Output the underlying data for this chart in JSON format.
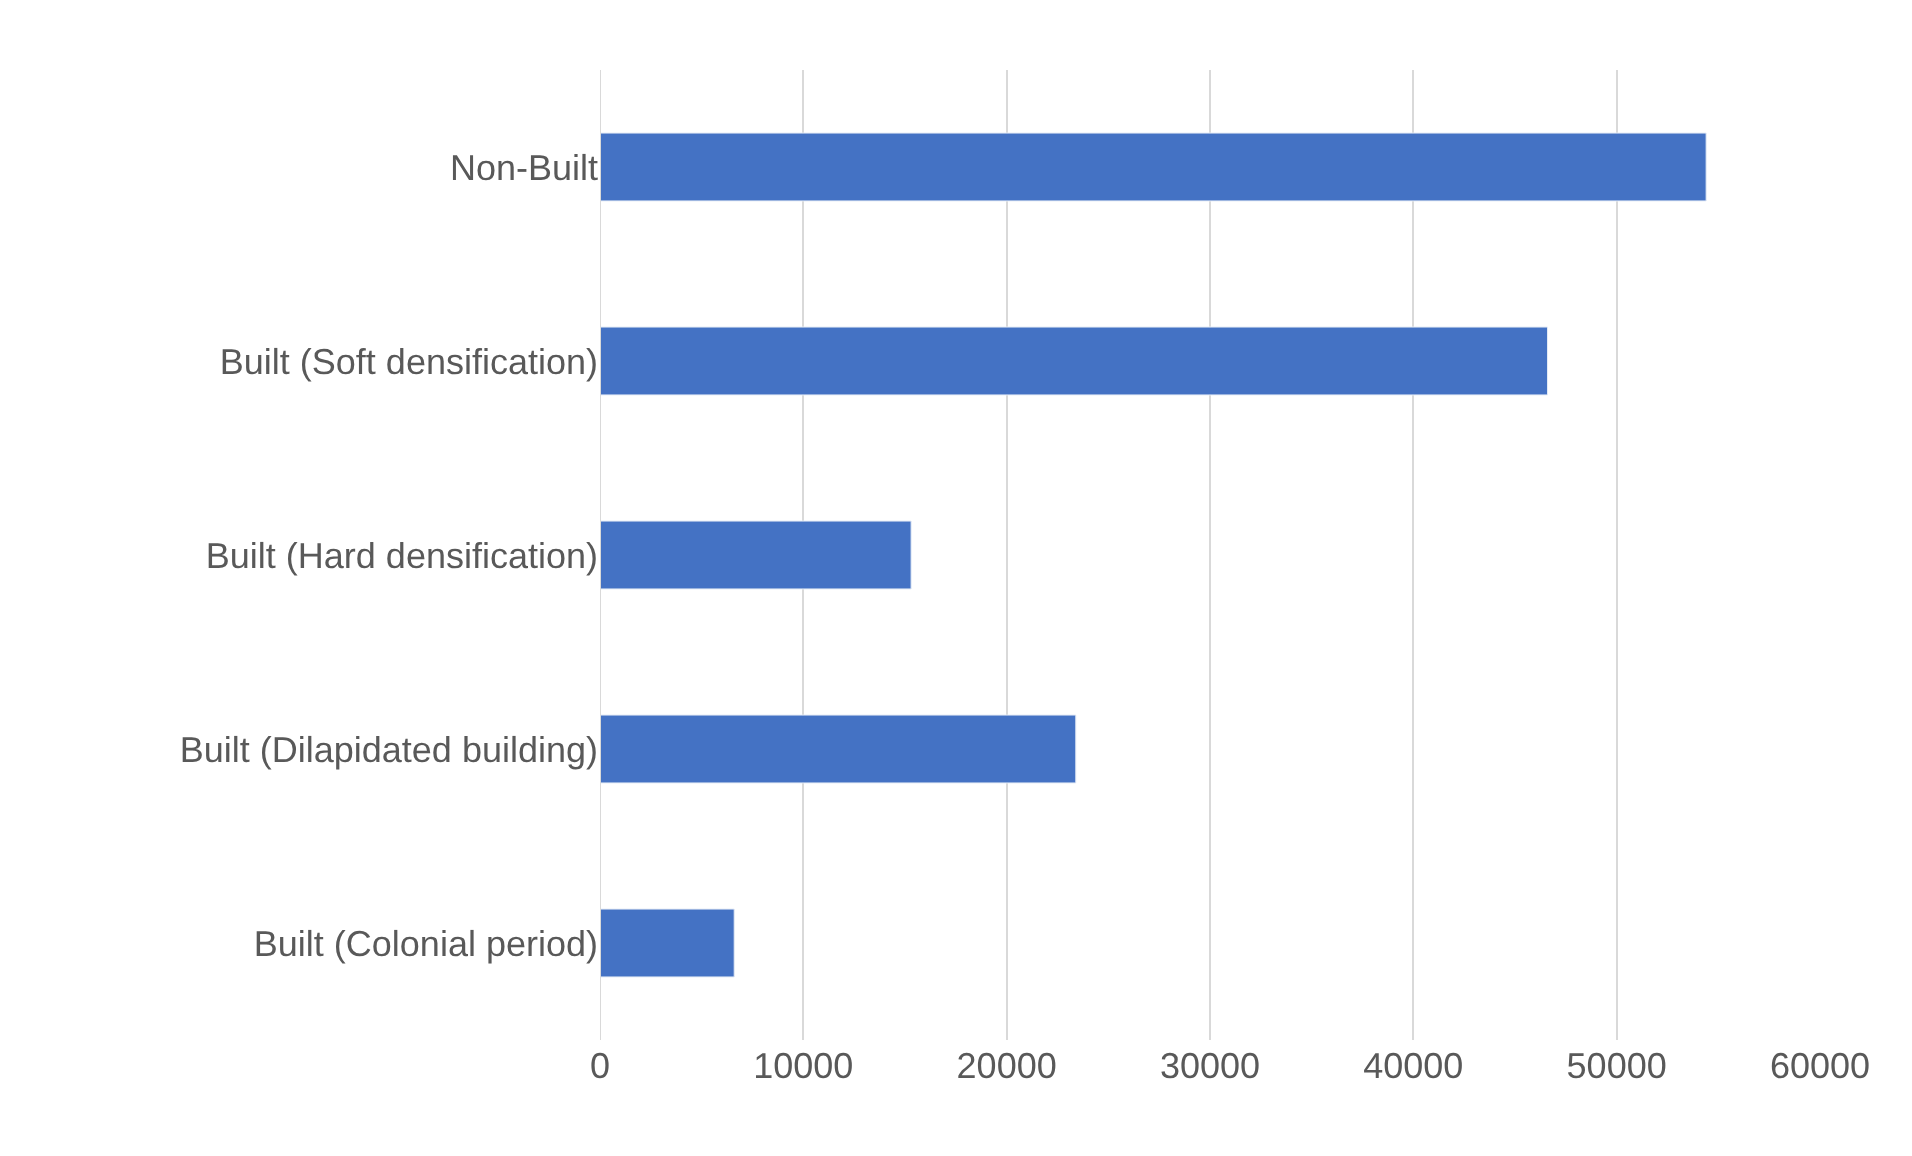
{
  "chart_data": {
    "type": "bar",
    "orientation": "horizontal",
    "categories": [
      "Non-Built",
      "Built (Soft densification)",
      "Built (Hard densification)",
      "Built (Dilapidated building)",
      "Built (Colonial period)"
    ],
    "values": [
      54400,
      46600,
      15300,
      23400,
      6600
    ],
    "color": "#4472c4",
    "xlim": [
      0,
      60000
    ],
    "xticks": [
      0,
      10000,
      20000,
      30000,
      40000,
      50000,
      60000
    ],
    "grid": "x",
    "legend": false
  }
}
